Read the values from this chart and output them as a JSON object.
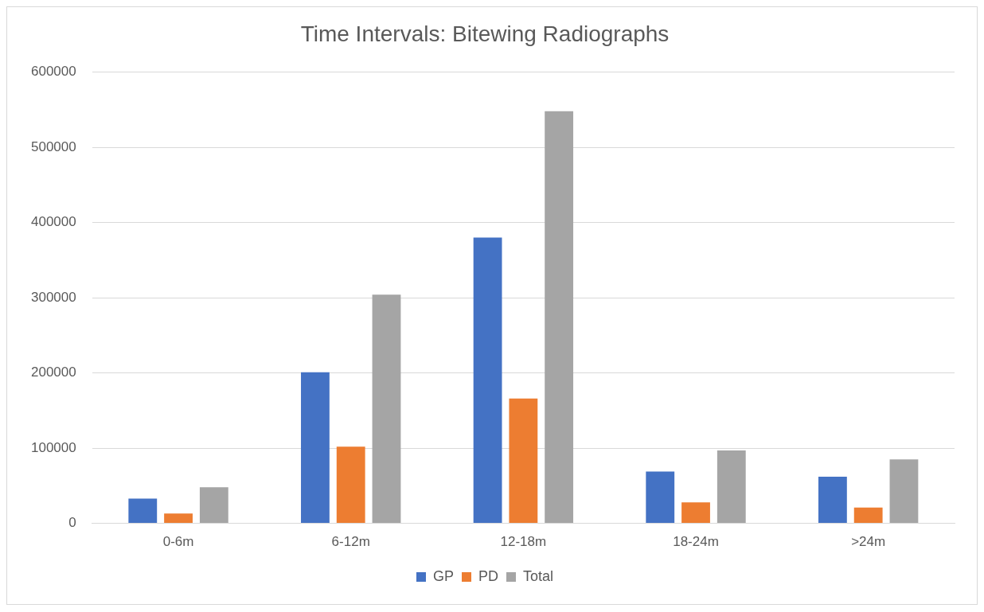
{
  "chart_data": {
    "type": "bar",
    "title": "Time Intervals: Bitewing Radiographs",
    "categories": [
      "0-6m",
      "6-12m",
      "12-18m",
      "18-24m",
      ">24m"
    ],
    "series": [
      {
        "name": "GP",
        "color": "#4472c4",
        "values": [
          33000,
          201000,
          380000,
          69000,
          62000
        ]
      },
      {
        "name": "PD",
        "color": "#ed7d31",
        "values": [
          13000,
          102000,
          166000,
          28000,
          21000
        ]
      },
      {
        "name": "Total",
        "color": "#a5a5a5",
        "values": [
          48000,
          304000,
          548000,
          97000,
          85000
        ]
      }
    ],
    "ylim": [
      0,
      600000
    ],
    "yticks": [
      0,
      100000,
      200000,
      300000,
      400000,
      500000,
      600000
    ],
    "grid": "y",
    "legend": "bottom"
  }
}
